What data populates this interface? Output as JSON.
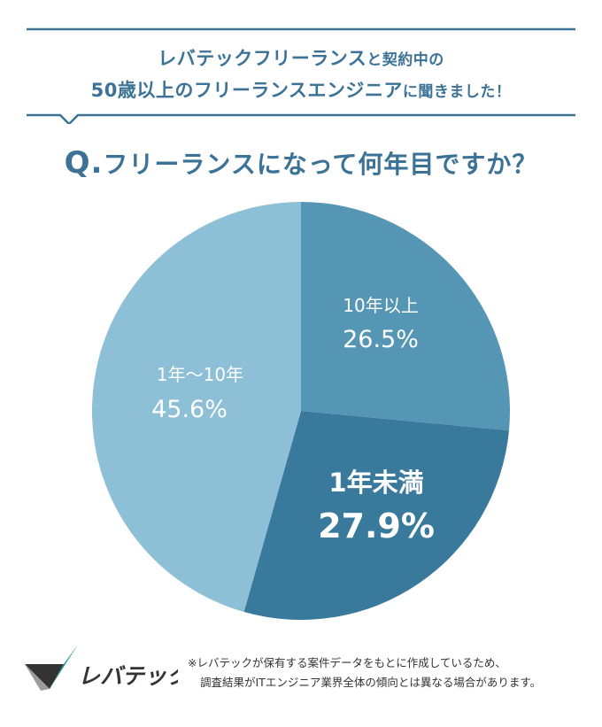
{
  "header": {
    "line1_brand": "レバテックフリーランス",
    "line1_rest": "と契約中の",
    "line2_main": "50歳以上のフリーランスエンジニア",
    "line2_rest": "に聞きました！"
  },
  "question": {
    "prefix": "Q.",
    "text": "フリーランスになって何年目ですか？"
  },
  "chart_data": {
    "type": "pie",
    "slices": [
      {
        "label": "10年以上",
        "value": 26.5,
        "value_label": "26.5%",
        "color": "#5596b4"
      },
      {
        "label": "1年未満",
        "value": 27.9,
        "value_label": "27.9%",
        "color": "#397a9c"
      },
      {
        "label": "1年〜10年",
        "value": 45.6,
        "value_label": "45.6%",
        "color": "#8dbfd7"
      }
    ]
  },
  "footer": {
    "logo_text": "レバテック",
    "note_line1": "※レバテックが保有する案件データをもとに作成しているため、",
    "note_line2": "調査結果がITエンジニア業界全体の傾向とは異なる場合があります。"
  },
  "colors": {
    "accent": "#3b7295",
    "logo_dark": "#333333",
    "logo_teal": "#27909b",
    "logo_gray": "#9c9c9c"
  }
}
